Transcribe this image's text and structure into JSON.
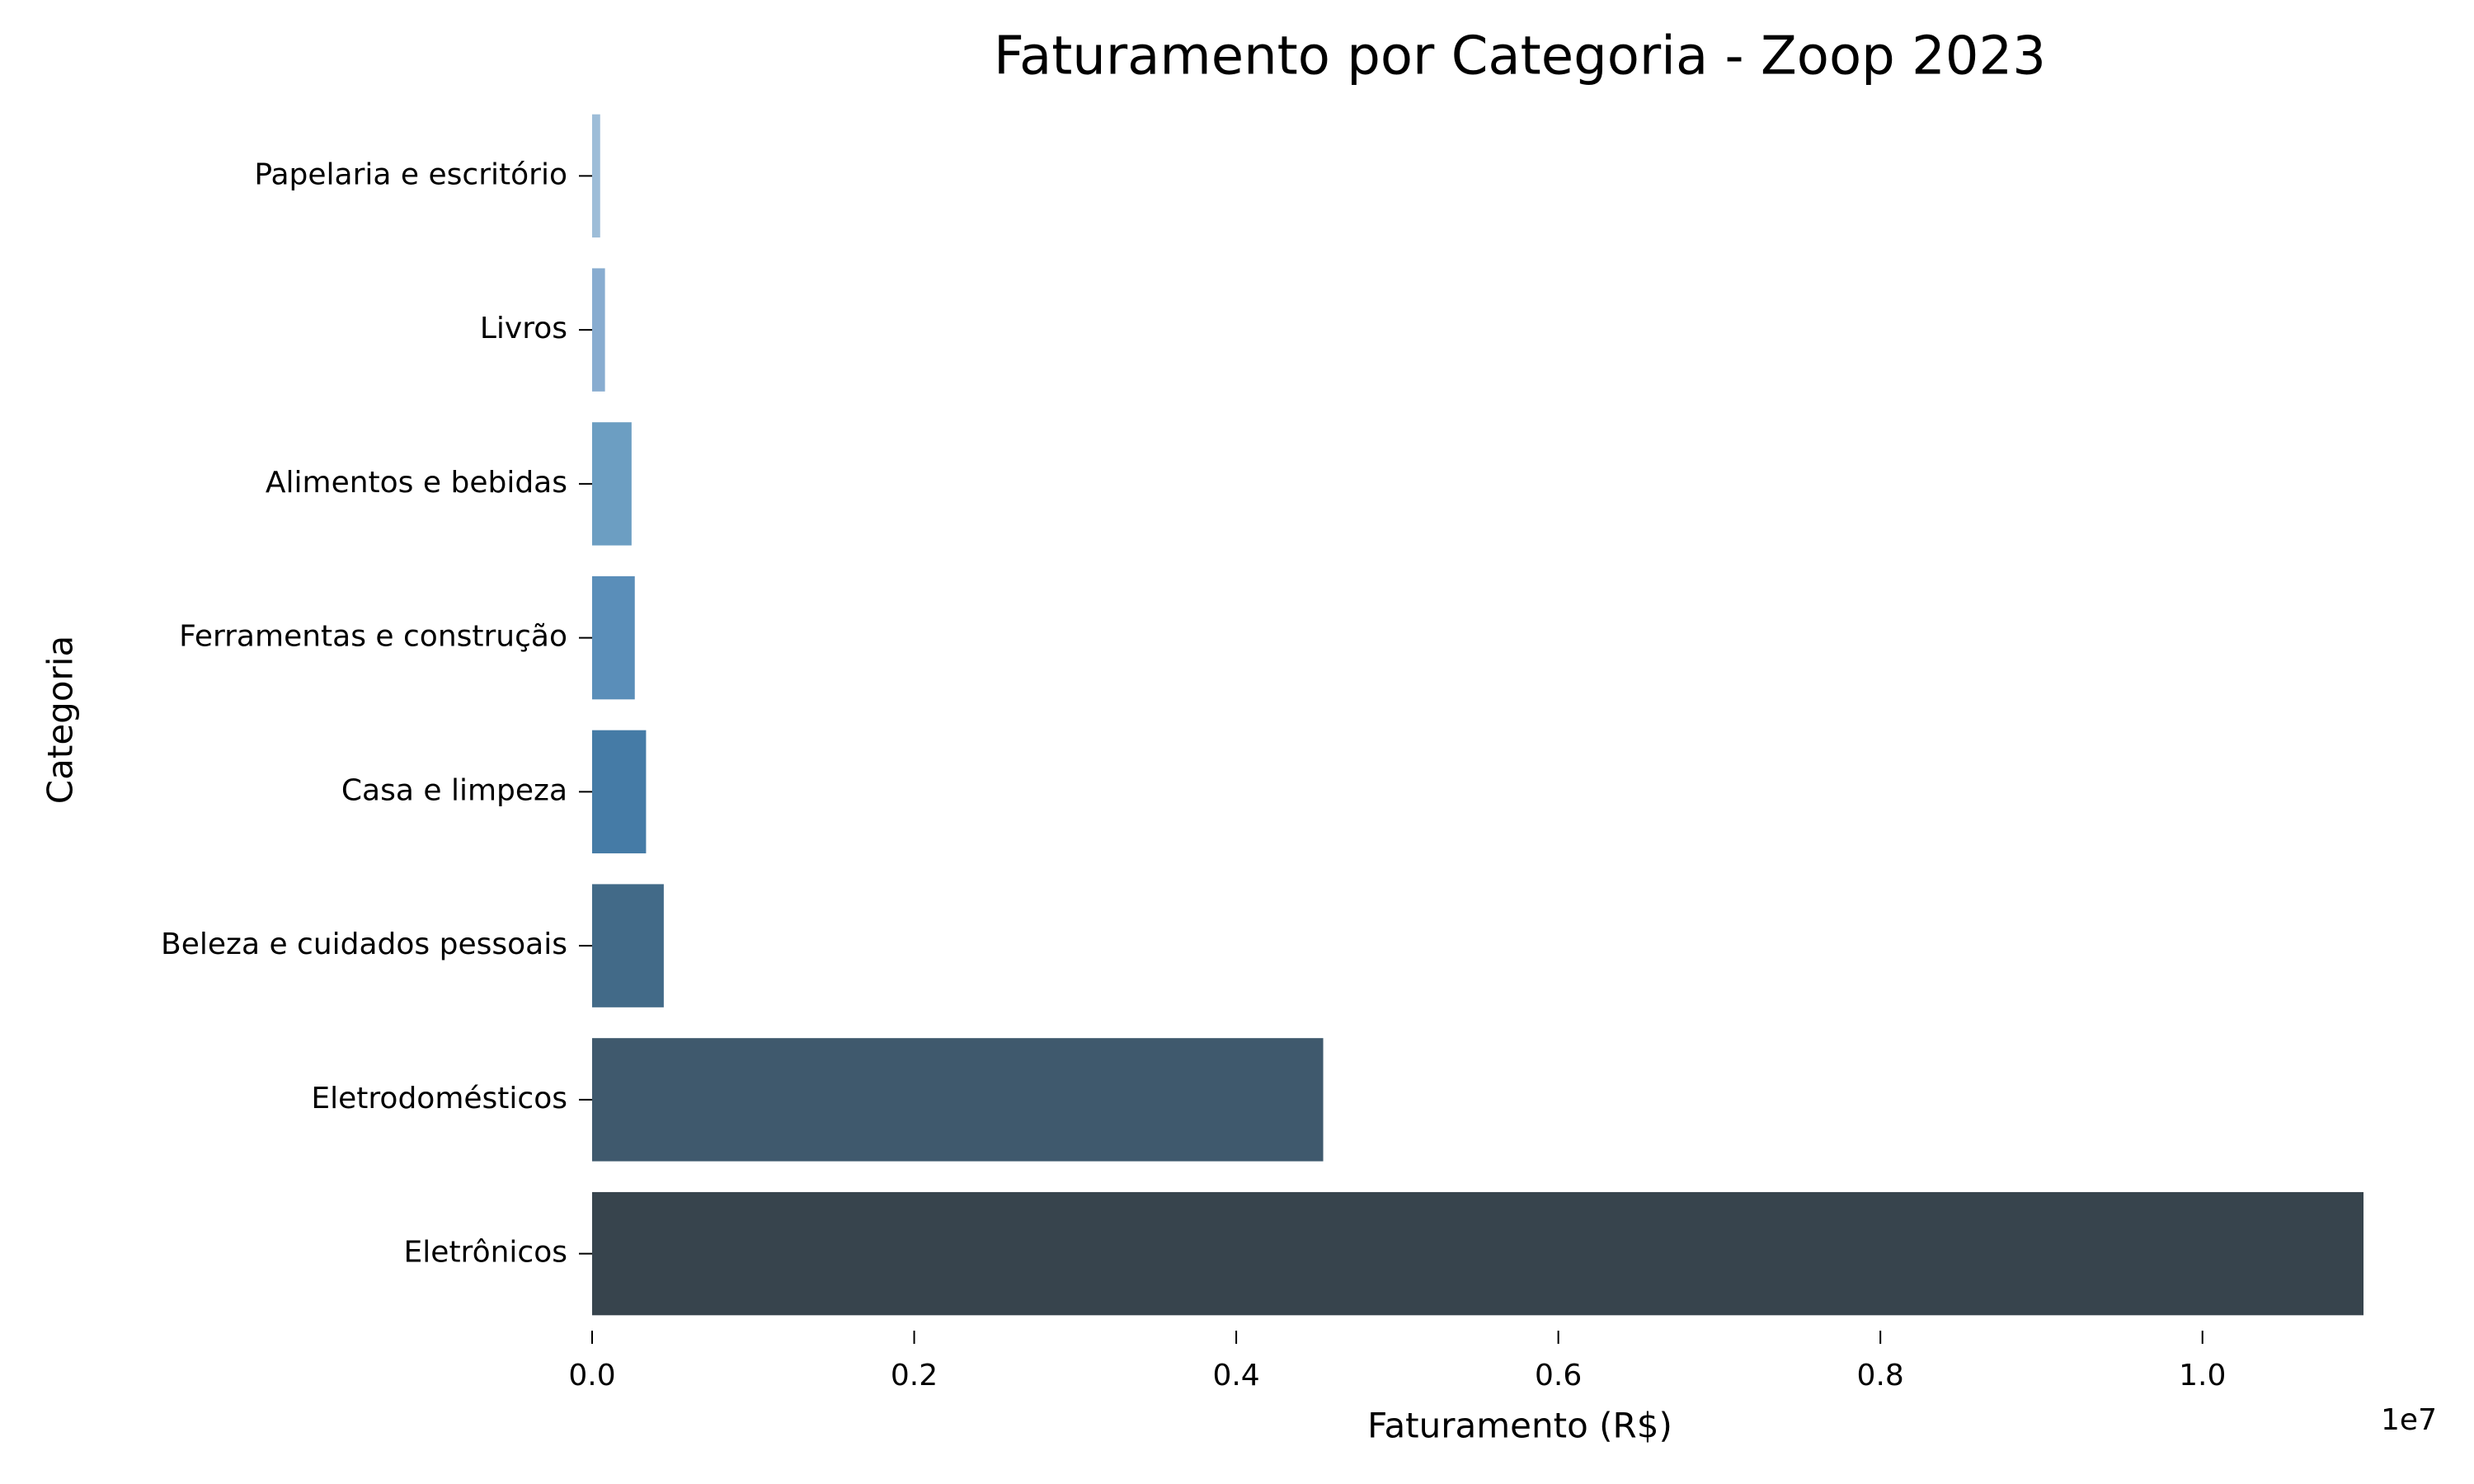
{
  "chart_data": {
    "type": "bar",
    "orientation": "horizontal",
    "title": "Faturamento por Categoria - Zoop 2023",
    "xlabel": "Faturamento (R$)",
    "ylabel": "Categoria",
    "x_offset_label": "1e7",
    "xlim": [
      0,
      11000000
    ],
    "x_tick_values": [
      0,
      2000000,
      4000000,
      6000000,
      8000000,
      10000000
    ],
    "x_tick_labels": [
      "0.0",
      "0.2",
      "0.4",
      "0.6",
      "0.8",
      "1.0"
    ],
    "grid": false,
    "legend": "none",
    "categories": [
      "Papelaria e escritório",
      "Livros",
      "Alimentos e bebidas",
      "Ferramentas e construção",
      "Casa e limpeza",
      "Beleza e cuidados pessoais",
      "Eletrodomésticos",
      "Eletrônicos"
    ],
    "values": [
      50000,
      80000,
      245000,
      265000,
      335000,
      445000,
      4540000,
      11000000
    ],
    "colors": [
      "#9dbdd8",
      "#88acd0",
      "#6c9ec2",
      "#5a8eb9",
      "#457ba6",
      "#426a88",
      "#3f596d",
      "#37444d"
    ]
  }
}
